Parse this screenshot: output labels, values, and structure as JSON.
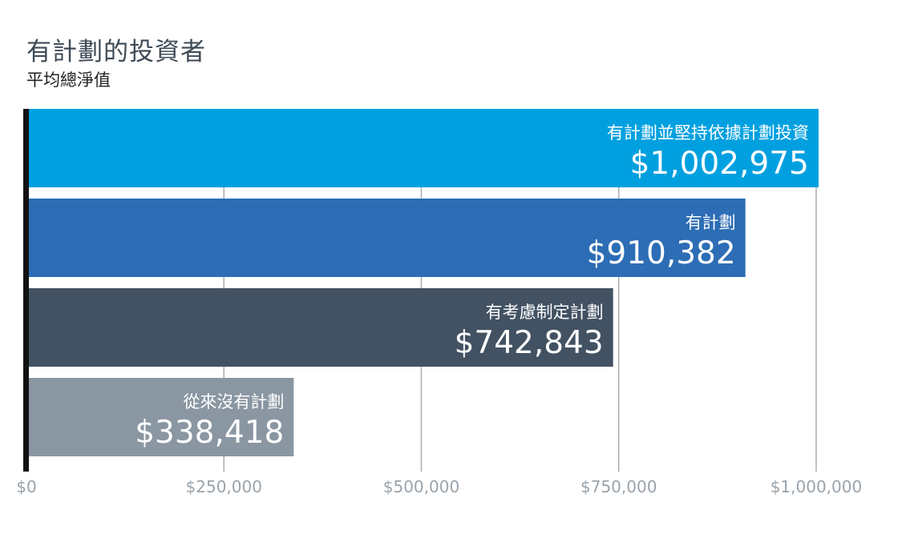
{
  "chart_data": {
    "type": "bar",
    "orientation": "horizontal",
    "title": "有計劃的投資者",
    "subtitle": "平均總淨值",
    "categories": [
      "有計劃並堅持依據計劃投資",
      "有計劃",
      "有考慮制定計劃",
      "從來沒有計劃"
    ],
    "values": [
      1002975,
      910382,
      742843,
      338418
    ],
    "value_labels": [
      "$1,002,975",
      "$910,382",
      "$742,843",
      "$338,418"
    ],
    "colors": [
      "#00a0e0",
      "#2d6db5",
      "#425263",
      "#8a97a2"
    ],
    "xlim": [
      0,
      1000000
    ],
    "xticks": [
      0,
      250000,
      500000,
      750000,
      1000000
    ],
    "xtick_labels": [
      "$0",
      "$250,000",
      "$500,000",
      "$750,000",
      "$1,000,000"
    ],
    "grid": true
  }
}
